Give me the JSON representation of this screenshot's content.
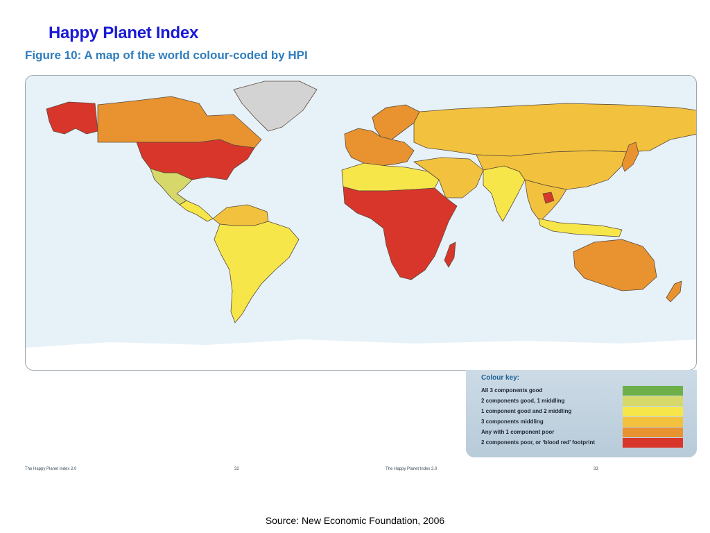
{
  "slide": {
    "title": "Happy Planet Index",
    "figure_title": "Figure 10: A map of the world colour-coded by HPI",
    "source": "Source: New Economic Foundation, 2006"
  },
  "map": {
    "ocean_color": "#e6f1f8",
    "regions": [
      {
        "name": "Alaska",
        "category": "blood-red"
      },
      {
        "name": "Canada",
        "category": "one-poor"
      },
      {
        "name": "Greenland",
        "category": "no-data"
      },
      {
        "name": "United States",
        "category": "blood-red"
      },
      {
        "name": "Mexico",
        "category": "two-good"
      },
      {
        "name": "Central America",
        "category": "one-good"
      },
      {
        "name": "South America",
        "category": "one-good"
      },
      {
        "name": "Northern South America",
        "category": "three-middling"
      },
      {
        "name": "Scandinavia",
        "category": "one-poor"
      },
      {
        "name": "Western Europe",
        "category": "one-poor"
      },
      {
        "name": "Russia",
        "category": "three-middling"
      },
      {
        "name": "North Africa",
        "category": "one-good"
      },
      {
        "name": "Sub-Saharan Africa",
        "category": "blood-red"
      },
      {
        "name": "Madagascar",
        "category": "blood-red"
      },
      {
        "name": "Middle East",
        "category": "three-middling"
      },
      {
        "name": "India",
        "category": "one-good"
      },
      {
        "name": "China",
        "category": "three-middling"
      },
      {
        "name": "Southeast Asia",
        "category": "three-middling"
      },
      {
        "name": "Cambodia",
        "category": "blood-red"
      },
      {
        "name": "Japan",
        "category": "one-poor"
      },
      {
        "name": "Indonesia",
        "category": "one-good"
      },
      {
        "name": "Australia",
        "category": "one-poor"
      },
      {
        "name": "New Zealand",
        "category": "one-poor"
      },
      {
        "name": "Antarctica",
        "category": "none"
      }
    ]
  },
  "legend": {
    "title": "Colour key:",
    "items": [
      {
        "key": "all-good",
        "label": "All 3 components good",
        "color": "#6db04a"
      },
      {
        "key": "two-good",
        "label": "2 components good, 1 middling",
        "color": "#d6d86a"
      },
      {
        "key": "one-good",
        "label": "1 component good and 2 middling",
        "color": "#f7e64a"
      },
      {
        "key": "three-middling",
        "label": "3 components middling",
        "color": "#f2c13e"
      },
      {
        "key": "one-poor",
        "label": "Any with 1 component poor",
        "color": "#e89330"
      },
      {
        "key": "blood-red",
        "label": "2 components poor, or ‘blood red’ footprint",
        "color": "#d9362b"
      }
    ]
  },
  "colors": {
    "no-data": "#d3d3d3",
    "none": "#ffffff",
    "border": "#5a4a3a"
  },
  "footer": {
    "left_text": "The Happy Planet Index 2.0",
    "left_page": "32",
    "right_text": "The Happy Planet Index 2.0",
    "right_page": "33"
  }
}
